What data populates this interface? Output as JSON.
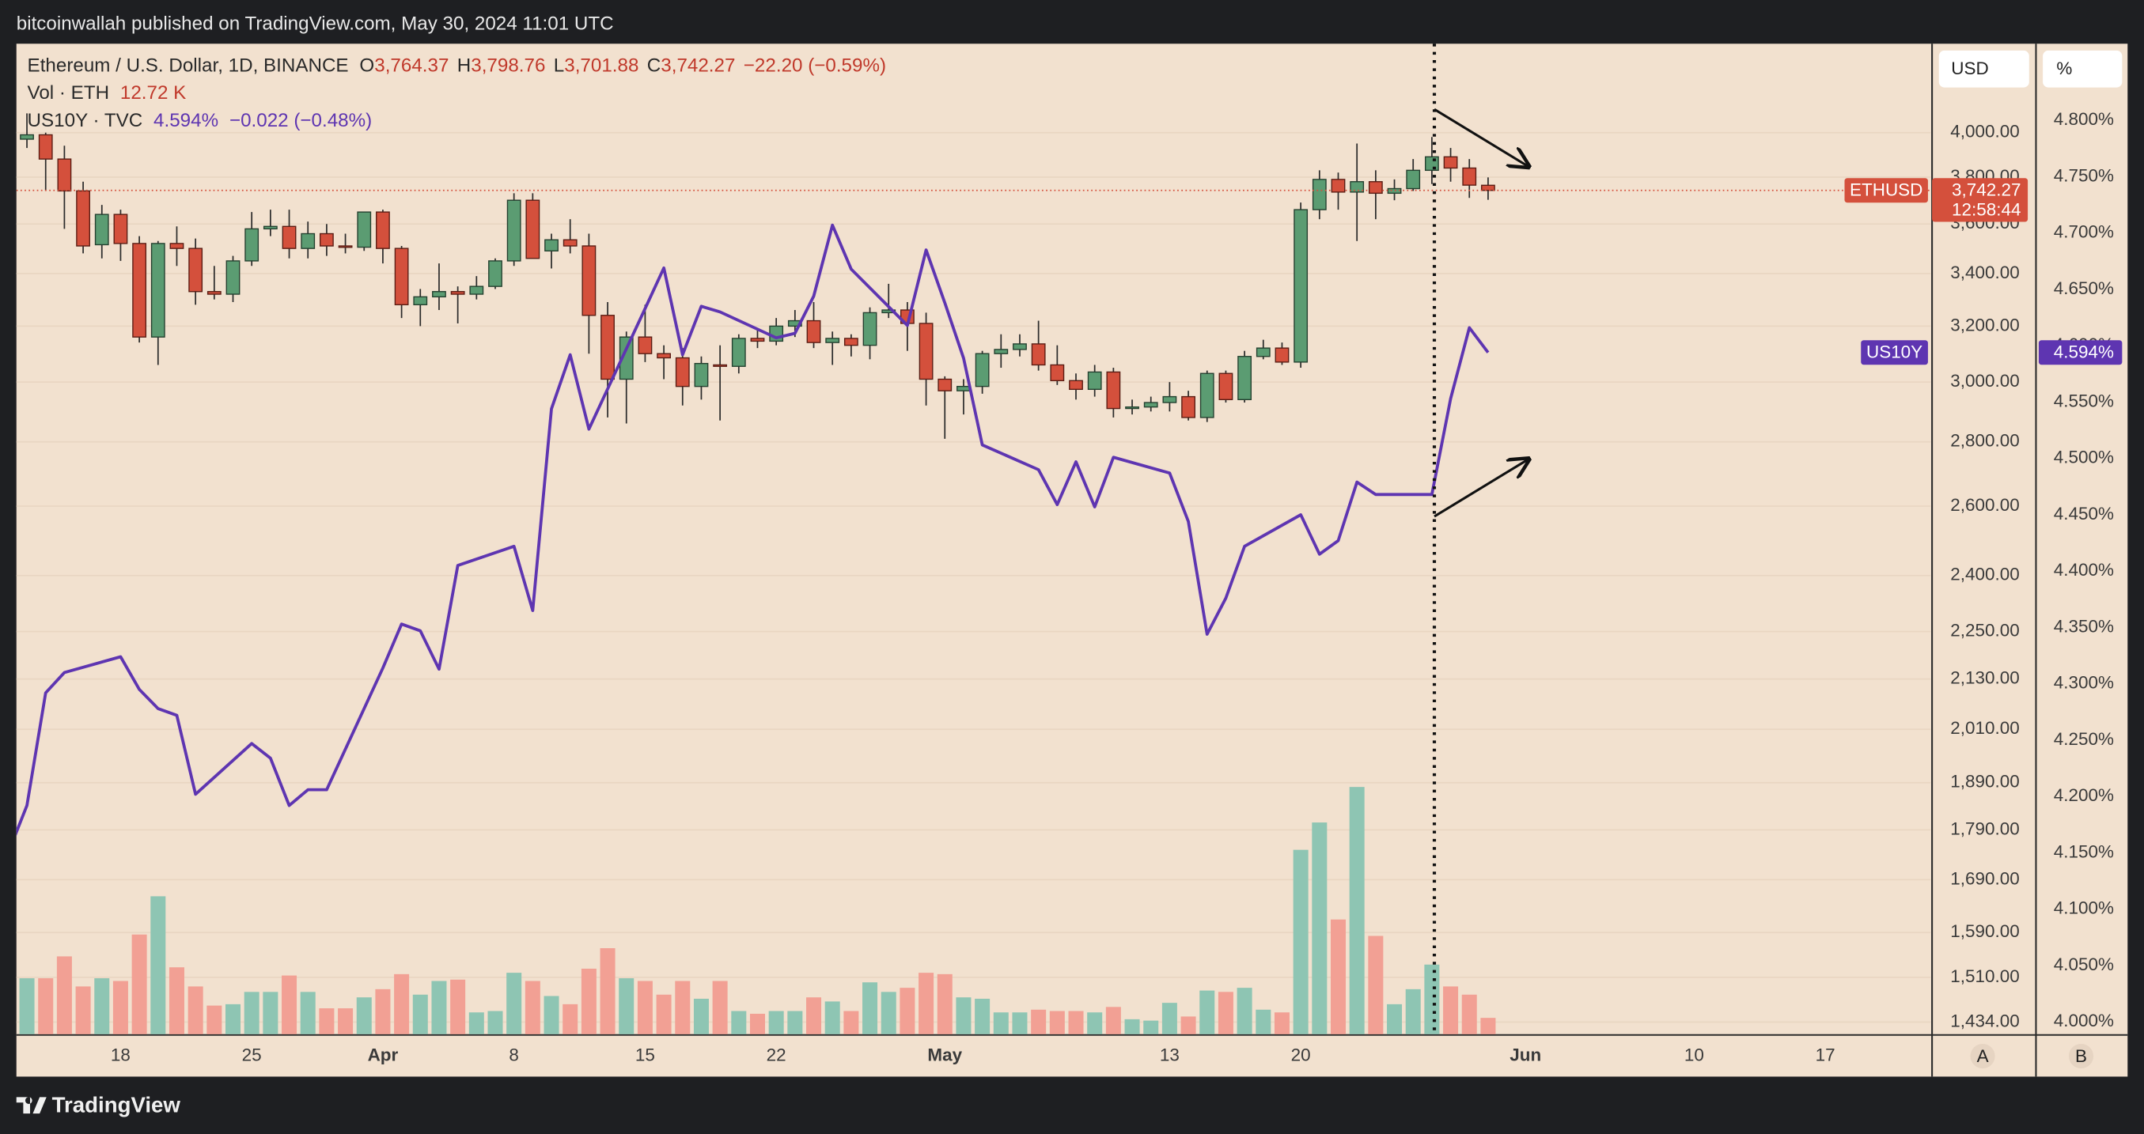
{
  "header": {
    "text": "bitcoinwallah published on TradingView.com, May 30, 2024 11:01 UTC"
  },
  "footer": {
    "brand": "TradingView"
  },
  "buttons": {
    "currency": "USD",
    "percent": "%",
    "left": "A",
    "right": "B"
  },
  "legend": {
    "symbol": "Ethereum / U.S. Dollar, 1D, BINANCE",
    "o": "O",
    "o_value": "3,764.37",
    "h": "H",
    "h_value": "3,798.76",
    "l": "L",
    "l_value": "3,701.88",
    "c": "C",
    "c_value": "3,742.27",
    "change": "−22.20 (−0.59%)",
    "volume": "Vol · ETH",
    "volume_value": "12.72 K",
    "overlay": "US10Y · TVC",
    "overlay_value": "4.594%",
    "overlay_change": "−0.022 (−0.48%)"
  },
  "chart_data": {
    "type": "candlestick",
    "log_scale": true,
    "grid": true,
    "up_color": "#5b9c72",
    "down_color": "#d4503c",
    "volume_up_color": "#8ec5b3",
    "volume_down_color": "#f2a094",
    "x": [
      "2024-03-13",
      "2024-03-14",
      "2024-03-15",
      "2024-03-16",
      "2024-03-17",
      "2024-03-18",
      "2024-03-19",
      "2024-03-20",
      "2024-03-21",
      "2024-03-22",
      "2024-03-23",
      "2024-03-24",
      "2024-03-25",
      "2024-03-26",
      "2024-03-27",
      "2024-03-28",
      "2024-03-29",
      "2024-03-30",
      "2024-03-31",
      "2024-04-01",
      "2024-04-02",
      "2024-04-03",
      "2024-04-04",
      "2024-04-05",
      "2024-04-06",
      "2024-04-07",
      "2024-04-08",
      "2024-04-09",
      "2024-04-10",
      "2024-04-11",
      "2024-04-12",
      "2024-04-13",
      "2024-04-14",
      "2024-04-15",
      "2024-04-16",
      "2024-04-17",
      "2024-04-18",
      "2024-04-19",
      "2024-04-20",
      "2024-04-21",
      "2024-04-22",
      "2024-04-23",
      "2024-04-24",
      "2024-04-25",
      "2024-04-26",
      "2024-04-27",
      "2024-04-28",
      "2024-04-29",
      "2024-04-30",
      "2024-05-01",
      "2024-05-02",
      "2024-05-03",
      "2024-05-04",
      "2024-05-05",
      "2024-05-06",
      "2024-05-07",
      "2024-05-08",
      "2024-05-09",
      "2024-05-10",
      "2024-05-11",
      "2024-05-12",
      "2024-05-13",
      "2024-05-14",
      "2024-05-15",
      "2024-05-16",
      "2024-05-17",
      "2024-05-18",
      "2024-05-19",
      "2024-05-20",
      "2024-05-21",
      "2024-05-22",
      "2024-05-23",
      "2024-05-24",
      "2024-05-25",
      "2024-05-26",
      "2024-05-27",
      "2024-05-28",
      "2024-05-29",
      "2024-05-30"
    ],
    "open": [
      3970,
      3990,
      3880,
      3740,
      3515,
      3640,
      3520,
      3160,
      3520,
      3500,
      3330,
      3320,
      3450,
      3580,
      3590,
      3500,
      3560,
      3510,
      3505,
      3650,
      3500,
      3280,
      3310,
      3330,
      3320,
      3350,
      3450,
      3700,
      3490,
      3535,
      3510,
      3240,
      3010,
      3160,
      3100,
      3085,
      2985,
      3060,
      3055,
      3155,
      3145,
      3200,
      3220,
      3140,
      3155,
      3130,
      3250,
      3260,
      3210,
      3010,
      2970,
      2985,
      3100,
      3115,
      3135,
      3060,
      3005,
      2975,
      3035,
      2910,
      2915,
      2930,
      2950,
      2880,
      3030,
      2940,
      3090,
      3120,
      3070,
      3660,
      3790,
      3735,
      3780,
      3730,
      3750,
      3830,
      3890,
      3840,
      3764.37
    ],
    "high": [
      4090,
      4000,
      3940,
      3780,
      3680,
      3660,
      3550,
      3530,
      3590,
      3540,
      3430,
      3470,
      3650,
      3660,
      3660,
      3610,
      3600,
      3560,
      3650,
      3660,
      3510,
      3340,
      3440,
      3350,
      3390,
      3460,
      3730,
      3730,
      3560,
      3620,
      3560,
      3290,
      3180,
      3280,
      3130,
      3120,
      3090,
      3130,
      3170,
      3190,
      3230,
      3260,
      3290,
      3180,
      3170,
      3270,
      3360,
      3290,
      3250,
      3020,
      3010,
      3110,
      3170,
      3170,
      3220,
      3130,
      3030,
      3060,
      3050,
      2940,
      2950,
      3000,
      2970,
      3040,
      3040,
      3110,
      3150,
      3140,
      3690,
      3830,
      3820,
      3950,
      3830,
      3790,
      3880,
      3980,
      3930,
      3880,
      3798.76
    ],
    "low": [
      3930,
      3740,
      3580,
      3480,
      3460,
      3450,
      3140,
      3060,
      3430,
      3280,
      3300,
      3290,
      3430,
      3550,
      3460,
      3460,
      3470,
      3480,
      3490,
      3440,
      3230,
      3200,
      3260,
      3210,
      3300,
      3340,
      3430,
      3460,
      3420,
      3480,
      3100,
      2880,
      2860,
      3070,
      3010,
      2920,
      2940,
      2870,
      3030,
      3120,
      3130,
      3160,
      3120,
      3060,
      3090,
      3080,
      3230,
      3110,
      2920,
      2810,
      2890,
      2960,
      3050,
      3090,
      3040,
      2990,
      2940,
      2950,
      2880,
      2890,
      2900,
      2900,
      2870,
      2865,
      2930,
      2930,
      3080,
      3060,
      3050,
      3620,
      3660,
      3530,
      3620,
      3700,
      3740,
      3770,
      3780,
      3710,
      3701.88
    ],
    "close": [
      3990,
      3880,
      3740,
      3510,
      3640,
      3520,
      3160,
      3520,
      3500,
      3330,
      3320,
      3450,
      3580,
      3590,
      3500,
      3560,
      3510,
      3505,
      3650,
      3500,
      3280,
      3310,
      3330,
      3320,
      3350,
      3450,
      3700,
      3460,
      3535,
      3510,
      3240,
      3010,
      3160,
      3100,
      3085,
      2985,
      3065,
      3055,
      3155,
      3145,
      3200,
      3220,
      3140,
      3155,
      3130,
      3250,
      3260,
      3210,
      3010,
      2970,
      2985,
      3100,
      3115,
      3135,
      3060,
      3005,
      2975,
      3035,
      2910,
      2915,
      2930,
      2950,
      2880,
      3030,
      2940,
      3090,
      3120,
      3070,
      3660,
      3790,
      3735,
      3780,
      3730,
      3750,
      3830,
      3890,
      3840,
      3765,
      3742.27
    ],
    "volume": [
      43460,
      43460,
      60420,
      37100,
      43460,
      41340,
      77380,
      107060,
      51940,
      37100,
      22260,
      23320,
      32860,
      32860,
      45580,
      32860,
      20140,
      20140,
      28620,
      34980,
      46640,
      30740,
      41340,
      42400,
      16960,
      18020,
      47700,
      41340,
      29680,
      23320,
      50880,
      66780,
      43460,
      41340,
      30740,
      41340,
      27560,
      41340,
      18020,
      15900,
      18020,
      18020,
      28620,
      25440,
      18020,
      40280,
      32860,
      36040,
      47700,
      46640,
      28620,
      27560,
      16960,
      16960,
      19080,
      18020,
      18020,
      16960,
      21200,
      11660,
      10600,
      24380,
      13780,
      33920,
      32860,
      36040,
      19080,
      16960,
      143100,
      164300,
      89040,
      191860,
      76320,
      23320,
      34980,
      54060,
      37100,
      30740,
      12720
    ],
    "xlim": [
      "2024-03-12",
      "2024-06-22"
    ],
    "xticks": [
      {
        "value": "2024-03-18",
        "label": "18"
      },
      {
        "value": "2024-03-25",
        "label": "25"
      },
      {
        "value": "2024-04-01",
        "label": "Apr"
      },
      {
        "value": "2024-04-08",
        "label": "8"
      },
      {
        "value": "2024-04-15",
        "label": "15"
      },
      {
        "value": "2024-04-22",
        "label": "22"
      },
      {
        "value": "2024-05-01",
        "label": "May"
      },
      {
        "value": "2024-05-13",
        "label": "13"
      },
      {
        "value": "2024-05-20",
        "label": "20"
      },
      {
        "value": "2024-06-01",
        "label": "Jun"
      },
      {
        "value": "2024-06-10",
        "label": "10"
      },
      {
        "value": "2024-06-17",
        "label": "17"
      }
    ],
    "ylim": [
      1414,
      4432
    ],
    "yticks": [
      {
        "value": 4000,
        "label": "4,000.00"
      },
      {
        "value": 3800,
        "label": "3,800.00"
      },
      {
        "value": 3600,
        "label": "3,600.00"
      },
      {
        "value": 3400,
        "label": "3,400.00"
      },
      {
        "value": 3200,
        "label": "3,200.00"
      },
      {
        "value": 3000,
        "label": "3,000.00"
      },
      {
        "value": 2800,
        "label": "2,800.00"
      },
      {
        "value": 2600,
        "label": "2,600.00"
      },
      {
        "value": 2400,
        "label": "2,400.00"
      },
      {
        "value": 2250,
        "label": "2,250.00"
      },
      {
        "value": 2130,
        "label": "2,130.00"
      },
      {
        "value": 2010,
        "label": "2,010.00"
      },
      {
        "value": 1890,
        "label": "1,890.00"
      },
      {
        "value": 1790,
        "label": "1,790.00"
      },
      {
        "value": 1690,
        "label": "1,690.00"
      },
      {
        "value": 1590,
        "label": "1,590.00"
      },
      {
        "value": 1510,
        "label": "1,510.00"
      },
      {
        "value": 1434,
        "label": "1,434.00"
      }
    ],
    "y2lim": [
      3.989,
      4.868
    ],
    "y2ticks": [
      {
        "value": 4.8,
        "label": "4.800%"
      },
      {
        "value": 4.75,
        "label": "4.750%"
      },
      {
        "value": 4.7,
        "label": "4.700%"
      },
      {
        "value": 4.65,
        "label": "4.650%"
      },
      {
        "value": 4.6,
        "label": "4.600%"
      },
      {
        "value": 4.55,
        "label": "4.550%"
      },
      {
        "value": 4.5,
        "label": "4.500%"
      },
      {
        "value": 4.45,
        "label": "4.450%"
      },
      {
        "value": 4.4,
        "label": "4.400%"
      },
      {
        "value": 4.35,
        "label": "4.350%"
      },
      {
        "value": 4.3,
        "label": "4.300%"
      },
      {
        "value": 4.25,
        "label": "4.250%"
      },
      {
        "value": 4.2,
        "label": "4.200%"
      },
      {
        "value": 4.15,
        "label": "4.150%"
      },
      {
        "value": 4.1,
        "label": "4.100%"
      },
      {
        "value": 4.05,
        "label": "4.050%"
      },
      {
        "value": 4,
        "label": "4.000%"
      }
    ],
    "price_tag": {
      "name": "ETHUSD",
      "price": "3,742.27",
      "countdown": "12:58:44",
      "color": "#d4503c"
    },
    "overlay": {
      "name": "US10Y",
      "axis": "y2",
      "color": "#5e35b1",
      "value_label": "4.594%",
      "x": [
        "2024-03-12",
        "2024-03-13",
        "2024-03-14",
        "2024-03-15",
        "2024-03-18",
        "2024-03-19",
        "2024-03-20",
        "2024-03-21",
        "2024-03-22",
        "2024-03-25",
        "2024-03-26",
        "2024-03-27",
        "2024-03-28",
        "2024-03-29",
        "2024-04-01",
        "2024-04-02",
        "2024-04-03",
        "2024-04-04",
        "2024-04-05",
        "2024-04-08",
        "2024-04-09",
        "2024-04-10",
        "2024-04-11",
        "2024-04-12",
        "2024-04-15",
        "2024-04-16",
        "2024-04-17",
        "2024-04-18",
        "2024-04-19",
        "2024-04-22",
        "2024-04-23",
        "2024-04-24",
        "2024-04-25",
        "2024-04-26",
        "2024-04-29",
        "2024-04-30",
        "2024-05-01",
        "2024-05-02",
        "2024-05-03",
        "2024-05-06",
        "2024-05-07",
        "2024-05-08",
        "2024-05-09",
        "2024-05-10",
        "2024-05-13",
        "2024-05-14",
        "2024-05-15",
        "2024-05-16",
        "2024-05-17",
        "2024-05-20",
        "2024-05-21",
        "2024-05-22",
        "2024-05-23",
        "2024-05-24",
        "2024-05-27",
        "2024-05-28",
        "2024-05-29",
        "2024-05-30"
      ],
      "values": [
        4.15,
        4.192,
        4.292,
        4.31,
        4.324,
        4.295,
        4.278,
        4.272,
        4.202,
        4.247,
        4.234,
        4.192,
        4.206,
        4.206,
        4.314,
        4.353,
        4.347,
        4.313,
        4.405,
        4.422,
        4.365,
        4.544,
        4.592,
        4.526,
        4.633,
        4.669,
        4.592,
        4.635,
        4.63,
        4.607,
        4.611,
        4.644,
        4.707,
        4.668,
        4.618,
        4.685,
        4.638,
        4.589,
        4.512,
        4.49,
        4.459,
        4.497,
        4.457,
        4.501,
        4.487,
        4.444,
        4.344,
        4.376,
        4.422,
        4.45,
        4.415,
        4.427,
        4.479,
        4.468,
        4.468,
        4.553,
        4.616,
        4.594
      ]
    }
  }
}
